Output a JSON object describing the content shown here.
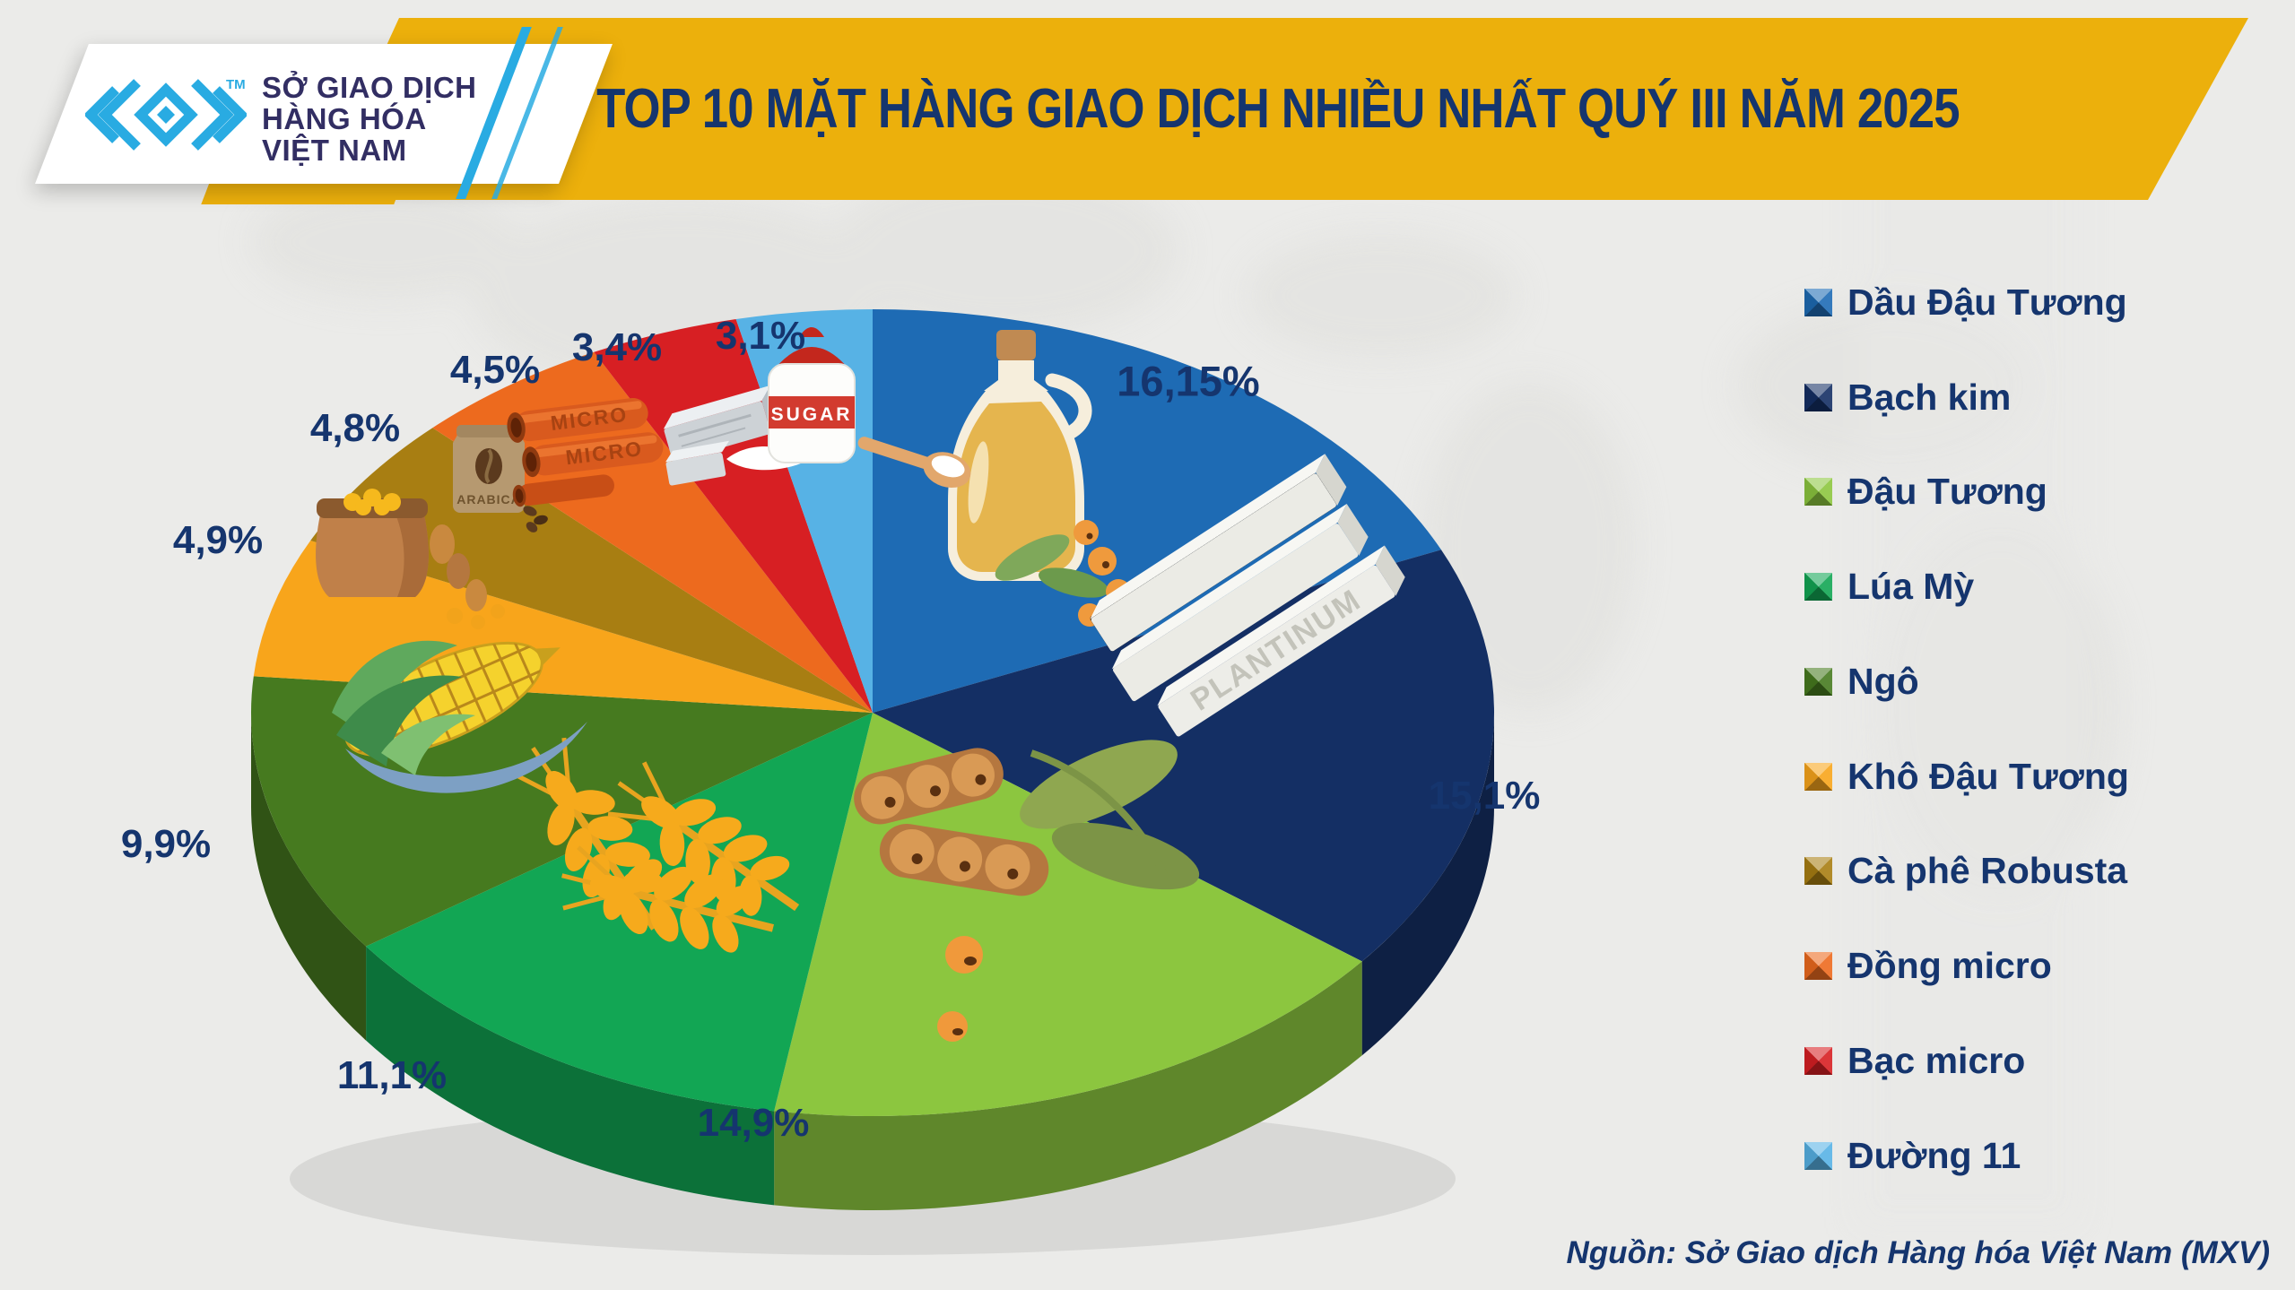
{
  "header": {
    "title": "TOP 10 MẶT HÀNG GIAO DỊCH NHIỀU NHẤT QUÝ III NĂM 2025",
    "logo": {
      "line1": "SỞ GIAO DỊCH",
      "line2": "HÀNG HÓA",
      "line3": "VIỆT NAM",
      "tm": "TM"
    }
  },
  "footer": {
    "source": "Nguồn: Sở Giao dịch Hàng hóa Việt Nam (MXV)"
  },
  "colors": {
    "banner_gold": "#ecb00c",
    "logo_cyan": "#29abe2",
    "text_navy": "#15356e",
    "background": "#ebebe9"
  },
  "chart_data": {
    "type": "pie",
    "title": "TOP 10 MẶT HÀNG GIAO DỊCH NHIỀU NHẤT QUÝ III NĂM 2025",
    "unit": "%",
    "legend_position": "right",
    "labels_outside": true,
    "style": "3d",
    "slices": [
      {
        "name": "Dầu Đậu Tương",
        "value": 16.15,
        "label": "16,15%",
        "color": "#1e6bb4"
      },
      {
        "name": "Bạch kim",
        "value": 15.1,
        "label": "15,1%",
        "color": "#142f64"
      },
      {
        "name": "Đậu Tương",
        "value": 14.9,
        "label": "14,9%",
        "color": "#8cc63f"
      },
      {
        "name": "Lúa Mỳ",
        "value": 11.1,
        "label": "11,1%",
        "color": "#12a654"
      },
      {
        "name": "Ngô",
        "value": 9.9,
        "label": "9,9%",
        "color": "#467a1f"
      },
      {
        "name": "Khô Đậu Tương",
        "value": 4.9,
        "label": "4,9%",
        "color": "#f8a51b"
      },
      {
        "name": "Cà phê Robusta",
        "value": 4.8,
        "label": "4,8%",
        "color": "#a87e12"
      },
      {
        "name": "Đồng micro",
        "value": 4.5,
        "label": "4,5%",
        "color": "#ed6a1e"
      },
      {
        "name": "Bạc micro",
        "value": 3.4,
        "label": "3,4%",
        "color": "#d71f23"
      },
      {
        "name": "Đường 11",
        "value": 3.1,
        "label": "3,1%",
        "color": "#57b2e5"
      }
    ]
  },
  "icons": {
    "platinum_label": "PLANTINUM",
    "sugar_label": "SUGAR",
    "micro_label": "MICRO",
    "coffee_label": "ARABICA"
  }
}
